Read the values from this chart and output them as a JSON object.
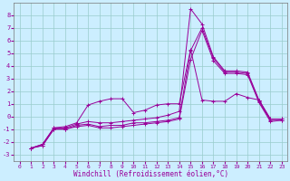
{
  "xlabel": "Windchill (Refroidissement éolien,°C)",
  "background_color": "#cceeff",
  "line_color": "#990099",
  "grid_color": "#99cccc",
  "x_ticks": [
    0,
    1,
    2,
    3,
    4,
    5,
    6,
    7,
    8,
    9,
    10,
    11,
    12,
    13,
    14,
    15,
    16,
    17,
    18,
    19,
    20,
    21,
    22,
    23
  ],
  "y_ticks": [
    -3,
    -2,
    -1,
    0,
    1,
    2,
    3,
    4,
    5,
    6,
    7,
    8
  ],
  "xlim": [
    -0.5,
    23.5
  ],
  "ylim": [
    -3.5,
    9.0
  ],
  "series": [
    [
      null,
      -2.5,
      -2.2,
      -0.9,
      -0.8,
      -0.5,
      0.9,
      1.2,
      1.4,
      1.4,
      0.3,
      0.5,
      0.9,
      1.0,
      1.0,
      5.3,
      1.3,
      1.2,
      1.2,
      1.8,
      1.5,
      1.3,
      -0.2,
      -0.2
    ],
    [
      null,
      -2.5,
      -2.2,
      -0.9,
      -0.9,
      -0.6,
      -0.4,
      -0.5,
      -0.5,
      -0.4,
      -0.3,
      -0.2,
      -0.1,
      0.1,
      0.4,
      8.5,
      7.3,
      4.7,
      3.6,
      3.6,
      3.5,
      1.3,
      -0.2,
      -0.2
    ],
    [
      null,
      -2.5,
      -2.3,
      -1.0,
      -1.0,
      -0.7,
      -0.6,
      -0.8,
      -0.7,
      -0.7,
      -0.5,
      -0.5,
      -0.4,
      -0.3,
      -0.1,
      5.2,
      7.0,
      4.6,
      3.5,
      3.5,
      3.4,
      1.2,
      -0.3,
      -0.3
    ],
    [
      null,
      -2.5,
      -2.3,
      -1.0,
      -1.0,
      -0.8,
      -0.7,
      -0.9,
      -0.9,
      -0.8,
      -0.7,
      -0.6,
      -0.5,
      -0.4,
      -0.2,
      4.5,
      6.8,
      4.4,
      3.4,
      3.4,
      3.3,
      1.1,
      -0.4,
      -0.3
    ]
  ]
}
